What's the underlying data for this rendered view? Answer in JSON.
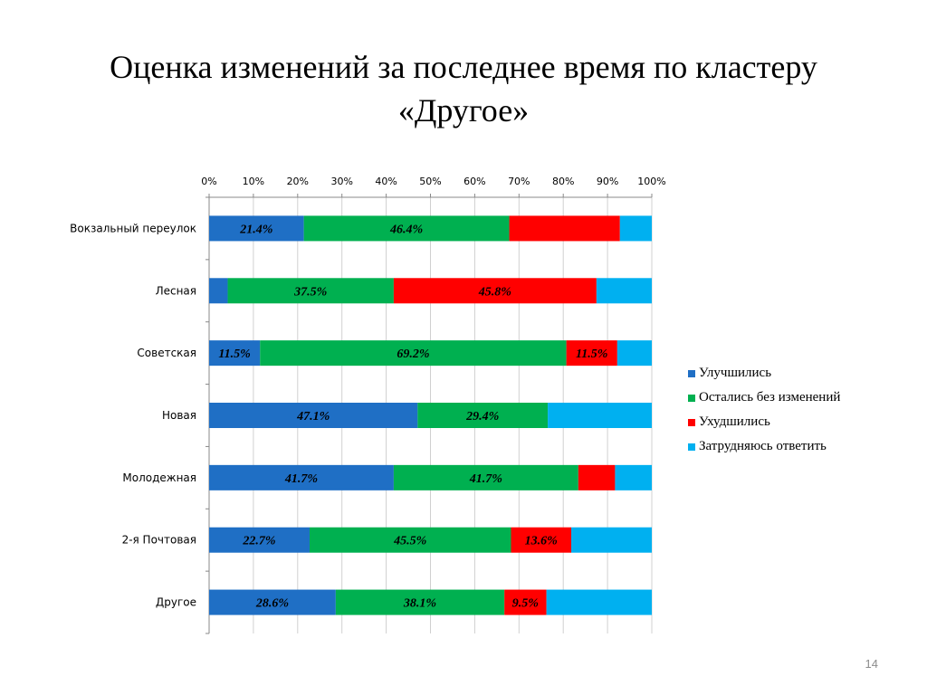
{
  "slide": {
    "title_line1": "Оценка изменений за последнее время по кластеру",
    "title_line2": "«Другое»",
    "page_number": "14"
  },
  "chart_data": {
    "type": "bar",
    "orientation": "horizontal",
    "stacked": "percent",
    "categories": [
      "Вокзальный переулок",
      "Лесная",
      "Советская",
      "Новая",
      "Молодежная",
      "2-я Почтовая",
      "Другое"
    ],
    "series": [
      {
        "name": "Улучшились",
        "color": "#1F6FC5",
        "values": [
          21.4,
          4.2,
          11.5,
          47.1,
          41.7,
          22.7,
          28.6
        ],
        "labels": [
          "21.4%",
          "",
          "11.5%",
          "47.1%",
          "41.7%",
          "22.7%",
          "28.6%"
        ]
      },
      {
        "name": "Остались без изменений",
        "color": "#00B050",
        "values": [
          46.4,
          37.5,
          69.2,
          29.4,
          41.7,
          45.5,
          38.1
        ],
        "labels": [
          "46.4%",
          "37.5%",
          "69.2%",
          "29.4%",
          "41.7%",
          "45.5%",
          "38.1%"
        ]
      },
      {
        "name": "Ухудшились",
        "color": "#FF0000",
        "values": [
          25.0,
          45.8,
          11.5,
          0,
          8.3,
          13.6,
          9.5
        ],
        "labels": [
          "",
          "45.8%",
          "11.5%",
          "",
          "",
          "13.6%",
          "9.5%"
        ]
      },
      {
        "name": "Затрудняюсь ответить",
        "color": "#00B0F0",
        "values": [
          7.2,
          12.5,
          7.8,
          23.5,
          8.3,
          18.2,
          23.8
        ],
        "labels": [
          "",
          "",
          "",
          "",
          "",
          "",
          ""
        ]
      }
    ],
    "x_ticks": [
      "0%",
      "10%",
      "20%",
      "30%",
      "40%",
      "50%",
      "60%",
      "70%",
      "80%",
      "90%",
      "100%"
    ],
    "xlim": [
      0,
      100
    ],
    "x_axis_position": "top",
    "grid": true,
    "legend_position": "right"
  }
}
